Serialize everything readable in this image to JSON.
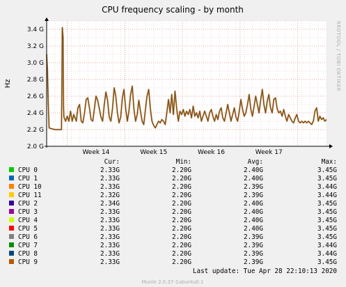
{
  "chart_data": {
    "type": "line",
    "title": "CPU frequency scaling - by month",
    "side_label": "RRDTOOL / TOBI OETIKER",
    "ylabel": "Hz",
    "ylim": [
      2.0,
      3.5
    ],
    "yticks": [
      "2.0 G",
      "2.2 G",
      "2.4 G",
      "2.6 G",
      "2.8 G",
      "3.0 G",
      "3.2 G",
      "3.4 G"
    ],
    "xlim": [
      0,
      34
    ],
    "xticks": [
      {
        "label": "Week 14",
        "at": 6
      },
      {
        "label": "Week 15",
        "at": 13
      },
      {
        "label": "Week 16",
        "at": 20
      },
      {
        "label": "Week 17",
        "at": 27
      }
    ],
    "week_boundaries": [
      2.5,
      9.5,
      16.5,
      23.5,
      30.5
    ],
    "x_unit": "days from start of plotted range",
    "grid": true,
    "line_color": "#7a4a1c",
    "series_points": [
      [
        0,
        3.1
      ],
      [
        0.1,
        2.9
      ],
      [
        0.2,
        2.5
      ],
      [
        0.3,
        2.22
      ],
      [
        0.6,
        2.21
      ],
      [
        1.0,
        2.2
      ],
      [
        1.5,
        2.2
      ],
      [
        1.8,
        2.2
      ],
      [
        1.85,
        2.8
      ],
      [
        1.9,
        3.42
      ],
      [
        2.0,
        3.3
      ],
      [
        2.05,
        2.5
      ],
      [
        2.1,
        2.35
      ],
      [
        2.3,
        2.3
      ],
      [
        2.5,
        2.36
      ],
      [
        2.7,
        2.3
      ],
      [
        2.9,
        2.42
      ],
      [
        3.1,
        2.3
      ],
      [
        3.3,
        2.38
      ],
      [
        3.6,
        2.3
      ],
      [
        3.8,
        2.46
      ],
      [
        4.0,
        2.5
      ],
      [
        4.2,
        2.3
      ],
      [
        4.4,
        2.28
      ],
      [
        4.6,
        2.4
      ],
      [
        4.8,
        2.56
      ],
      [
        5.0,
        2.58
      ],
      [
        5.2,
        2.46
      ],
      [
        5.4,
        2.32
      ],
      [
        5.6,
        2.3
      ],
      [
        5.8,
        2.45
      ],
      [
        6.0,
        2.6
      ],
      [
        6.2,
        2.55
      ],
      [
        6.4,
        2.45
      ],
      [
        6.6,
        2.35
      ],
      [
        6.8,
        2.3
      ],
      [
        7.0,
        2.5
      ],
      [
        7.2,
        2.65
      ],
      [
        7.4,
        2.55
      ],
      [
        7.6,
        2.35
      ],
      [
        7.8,
        2.3
      ],
      [
        8.0,
        2.45
      ],
      [
        8.2,
        2.7
      ],
      [
        8.4,
        2.6
      ],
      [
        8.6,
        2.4
      ],
      [
        8.8,
        2.28
      ],
      [
        9.0,
        2.35
      ],
      [
        9.2,
        2.58
      ],
      [
        9.4,
        2.68
      ],
      [
        9.6,
        2.45
      ],
      [
        9.8,
        2.3
      ],
      [
        10.0,
        2.42
      ],
      [
        10.2,
        2.62
      ],
      [
        10.4,
        2.72
      ],
      [
        10.6,
        2.45
      ],
      [
        10.8,
        2.3
      ],
      [
        11.0,
        2.38
      ],
      [
        11.2,
        2.55
      ],
      [
        11.4,
        2.42
      ],
      [
        11.6,
        2.3
      ],
      [
        11.8,
        2.26
      ],
      [
        12.0,
        2.44
      ],
      [
        12.2,
        2.6
      ],
      [
        12.4,
        2.68
      ],
      [
        12.6,
        2.45
      ],
      [
        12.8,
        2.3
      ],
      [
        13.0,
        2.25
      ],
      [
        13.2,
        2.22
      ],
      [
        13.4,
        2.26
      ],
      [
        13.6,
        2.3
      ],
      [
        13.8,
        2.28
      ],
      [
        14.0,
        2.32
      ],
      [
        14.2,
        2.3
      ],
      [
        14.4,
        2.26
      ],
      [
        14.6,
        2.4
      ],
      [
        14.8,
        2.56
      ],
      [
        15.0,
        2.4
      ],
      [
        15.2,
        2.62
      ],
      [
        15.4,
        2.38
      ],
      [
        15.6,
        2.66
      ],
      [
        15.8,
        2.45
      ],
      [
        16.0,
        2.3
      ],
      [
        16.2,
        2.42
      ],
      [
        16.4,
        2.38
      ],
      [
        16.6,
        2.44
      ],
      [
        16.8,
        2.36
      ],
      [
        17.0,
        2.42
      ],
      [
        17.2,
        2.38
      ],
      [
        17.4,
        2.44
      ],
      [
        17.6,
        2.34
      ],
      [
        17.8,
        2.48
      ],
      [
        18.0,
        2.36
      ],
      [
        18.2,
        2.4
      ],
      [
        18.4,
        2.34
      ],
      [
        18.6,
        2.42
      ],
      [
        18.8,
        2.3
      ],
      [
        19.0,
        2.36
      ],
      [
        19.2,
        2.42
      ],
      [
        19.4,
        2.36
      ],
      [
        19.6,
        2.3
      ],
      [
        19.8,
        2.4
      ],
      [
        20.0,
        2.44
      ],
      [
        20.2,
        2.36
      ],
      [
        20.4,
        2.3
      ],
      [
        20.6,
        2.38
      ],
      [
        20.8,
        2.32
      ],
      [
        21.0,
        2.42
      ],
      [
        21.2,
        2.46
      ],
      [
        21.4,
        2.34
      ],
      [
        21.6,
        2.3
      ],
      [
        21.8,
        2.4
      ],
      [
        22.0,
        2.5
      ],
      [
        22.2,
        2.4
      ],
      [
        22.4,
        2.3
      ],
      [
        22.6,
        2.38
      ],
      [
        22.8,
        2.46
      ],
      [
        23.0,
        2.35
      ],
      [
        23.2,
        2.3
      ],
      [
        23.4,
        2.42
      ],
      [
        23.6,
        2.56
      ],
      [
        23.8,
        2.44
      ],
      [
        24.0,
        2.36
      ],
      [
        24.2,
        2.4
      ],
      [
        24.4,
        2.5
      ],
      [
        24.6,
        2.62
      ],
      [
        24.8,
        2.45
      ],
      [
        25.0,
        2.36
      ],
      [
        25.2,
        2.48
      ],
      [
        25.4,
        2.6
      ],
      [
        25.6,
        2.5
      ],
      [
        25.8,
        2.4
      ],
      [
        26.0,
        2.55
      ],
      [
        26.2,
        2.68
      ],
      [
        26.4,
        2.5
      ],
      [
        26.6,
        2.4
      ],
      [
        26.8,
        2.54
      ],
      [
        27.0,
        2.62
      ],
      [
        27.2,
        2.46
      ],
      [
        27.4,
        2.4
      ],
      [
        27.6,
        2.56
      ],
      [
        27.8,
        2.58
      ],
      [
        28.0,
        2.45
      ],
      [
        28.2,
        2.4
      ],
      [
        28.4,
        2.42
      ],
      [
        28.6,
        2.36
      ],
      [
        28.8,
        2.44
      ],
      [
        29.0,
        2.36
      ],
      [
        29.2,
        2.3
      ],
      [
        29.4,
        2.38
      ],
      [
        29.6,
        2.34
      ],
      [
        29.8,
        2.3
      ],
      [
        30.0,
        2.28
      ],
      [
        30.2,
        2.34
      ],
      [
        30.4,
        2.38
      ],
      [
        30.6,
        2.3
      ],
      [
        30.8,
        2.28
      ],
      [
        31.0,
        2.3
      ],
      [
        31.2,
        2.28
      ],
      [
        31.4,
        2.3
      ],
      [
        31.6,
        2.28
      ],
      [
        31.8,
        2.3
      ],
      [
        32.0,
        2.28
      ],
      [
        32.2,
        2.26
      ],
      [
        32.4,
        2.3
      ],
      [
        32.6,
        2.42
      ],
      [
        32.8,
        2.46
      ],
      [
        33.0,
        2.3
      ],
      [
        33.2,
        2.36
      ],
      [
        33.4,
        2.32
      ],
      [
        33.6,
        2.34
      ],
      [
        33.8,
        2.3
      ],
      [
        34.0,
        2.32
      ]
    ]
  },
  "legend": {
    "headers": {
      "cur": "Cur:",
      "min": "Min:",
      "avg": "Avg:",
      "max": "Max:"
    },
    "rows": [
      {
        "name": "CPU 0",
        "color": "#00cc00",
        "cur": "2.33G",
        "min": "2.20G",
        "avg": "2.40G",
        "max": "3.45G"
      },
      {
        "name": "CPU 1",
        "color": "#0066b3",
        "cur": "2.33G",
        "min": "2.20G",
        "avg": "2.40G",
        "max": "3.45G"
      },
      {
        "name": "CPU 10",
        "color": "#ff8000",
        "cur": "2.33G",
        "min": "2.20G",
        "avg": "2.39G",
        "max": "3.44G"
      },
      {
        "name": "CPU 11",
        "color": "#ffcc00",
        "cur": "2.32G",
        "min": "2.20G",
        "avg": "2.39G",
        "max": "3.44G"
      },
      {
        "name": "CPU 2",
        "color": "#330099",
        "cur": "2.34G",
        "min": "2.20G",
        "avg": "2.40G",
        "max": "3.45G"
      },
      {
        "name": "CPU 3",
        "color": "#990099",
        "cur": "2.33G",
        "min": "2.20G",
        "avg": "2.40G",
        "max": "3.45G"
      },
      {
        "name": "CPU 4",
        "color": "#ccff00",
        "cur": "2.33G",
        "min": "2.20G",
        "avg": "2.40G",
        "max": "3.45G"
      },
      {
        "name": "CPU 5",
        "color": "#ff0000",
        "cur": "2.33G",
        "min": "2.20G",
        "avg": "2.40G",
        "max": "3.45G"
      },
      {
        "name": "CPU 6",
        "color": "#808080",
        "cur": "2.33G",
        "min": "2.20G",
        "avg": "2.39G",
        "max": "3.45G"
      },
      {
        "name": "CPU 7",
        "color": "#008f00",
        "cur": "2.33G",
        "min": "2.20G",
        "avg": "2.39G",
        "max": "3.44G"
      },
      {
        "name": "CPU 8",
        "color": "#00487d",
        "cur": "2.33G",
        "min": "2.20G",
        "avg": "2.39G",
        "max": "3.44G"
      },
      {
        "name": "CPU 9",
        "color": "#b35a00",
        "cur": "2.33G",
        "min": "2.20G",
        "avg": "2.39G",
        "max": "3.45G"
      }
    ]
  },
  "last_update": "Last update: Tue Apr 28 22:10:13 2020",
  "footer": "Munin 2.0.37-1ubuntu0.1"
}
